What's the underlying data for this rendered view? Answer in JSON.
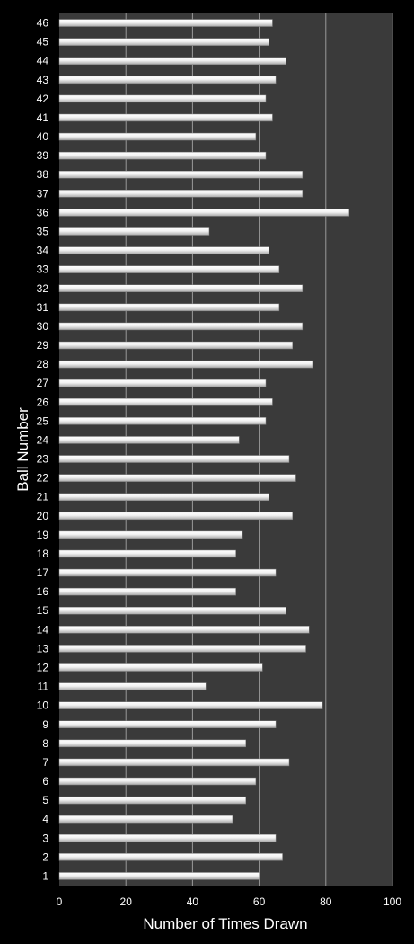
{
  "chart_data": {
    "type": "bar",
    "orientation": "horizontal",
    "xlabel": "Number of Times Drawn",
    "ylabel": "Ball Number",
    "xlim": [
      0,
      100
    ],
    "xticks": [
      0,
      20,
      40,
      60,
      80,
      100
    ],
    "grid": true,
    "legend": "none",
    "colors": {
      "background": "#000000",
      "plot_area": "#3a3a3a",
      "bar": "#e6e6e6",
      "grid": "#9a9a9a",
      "text": "#ffffff"
    },
    "categories": [
      "1",
      "2",
      "3",
      "4",
      "5",
      "6",
      "7",
      "8",
      "9",
      "10",
      "11",
      "12",
      "13",
      "14",
      "15",
      "16",
      "17",
      "18",
      "19",
      "20",
      "21",
      "22",
      "23",
      "24",
      "25",
      "26",
      "27",
      "28",
      "29",
      "30",
      "31",
      "32",
      "33",
      "34",
      "35",
      "36",
      "37",
      "38",
      "39",
      "40",
      "41",
      "42",
      "43",
      "44",
      "45",
      "46"
    ],
    "values": [
      60,
      67,
      65,
      52,
      56,
      59,
      69,
      56,
      65,
      79,
      44,
      61,
      74,
      75,
      68,
      53,
      65,
      53,
      55,
      70,
      63,
      71,
      69,
      54,
      62,
      64,
      62,
      76,
      70,
      73,
      66,
      73,
      66,
      63,
      45,
      87,
      73,
      73,
      62,
      59,
      64,
      62,
      65,
      68,
      63,
      64
    ]
  }
}
